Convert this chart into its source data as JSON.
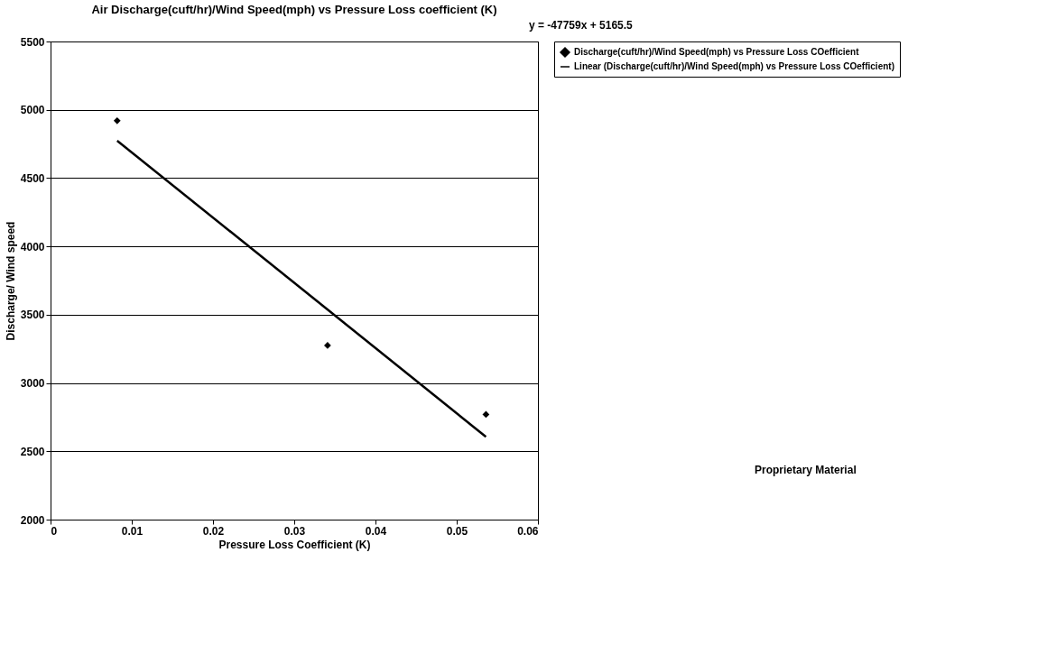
{
  "chart_data": {
    "type": "scatter",
    "title": "Air Discharge(cuft/hr)/Wind Speed(mph)  vs Pressure Loss coefficient (K)",
    "xlabel": "Pressure Loss Coefficient (K)",
    "ylabel": "Discharge/ Wind speed",
    "xlim": [
      0,
      0.06
    ],
    "ylim": [
      2000,
      5500
    ],
    "xticks": [
      0,
      {
        "value": 0.01,
        "label": "0.01"
      },
      {
        "value": 0.02,
        "label": "0.02"
      },
      {
        "value": 0.03,
        "label": "0.03"
      },
      {
        "value": 0.04,
        "label": "0.04"
      },
      {
        "value": 0.05,
        "label": "0.05"
      },
      {
        "value": 0.06,
        "label": "0.06"
      }
    ],
    "yticks": [
      2000,
      2500,
      3000,
      3500,
      4000,
      4500,
      5000,
      5500
    ],
    "grid": "y",
    "legend": "right",
    "annotations": [
      "y = -47759x + 5165.5",
      "Proprietary Material"
    ],
    "series": [
      {
        "type": "scatter",
        "name": "Discharge(cuft/hr)/Wind Speed(mph) vs Pressure Loss COefficient",
        "color": "#000000",
        "marker": "diamond",
        "x": [
          0.0082,
          0.0341,
          0.0536
        ],
        "values": [
          4920,
          3275,
          2770
        ]
      },
      {
        "type": "line",
        "name": "Linear (Discharge(cuft/hr)/Wind Speed(mph) vs Pressure Loss COefficient)",
        "color": "#000000",
        "marker": "none",
        "line_style": "solid",
        "x": [
          0.0082,
          0.0536
        ],
        "values": [
          4774,
          2606
        ]
      }
    ]
  }
}
